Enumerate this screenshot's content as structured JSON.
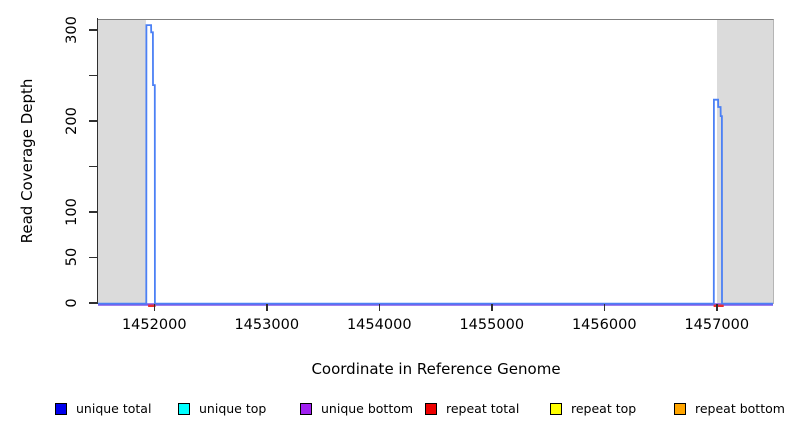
{
  "chart_data": {
    "type": "line",
    "title": "",
    "xlabel": "Coordinate in Reference Genome",
    "ylabel": "Read Coverage Depth",
    "xlim": [
      1451500,
      1457500
    ],
    "ylim": [
      0,
      312
    ],
    "grid": "off",
    "x_ticks": [
      {
        "value": 1452000,
        "label": "1452000"
      },
      {
        "value": 1453000,
        "label": "1453000"
      },
      {
        "value": 1454000,
        "label": "1454000"
      },
      {
        "value": 1455000,
        "label": "1455000"
      },
      {
        "value": 1456000,
        "label": "1456000"
      },
      {
        "value": 1457000,
        "label": "1457000"
      }
    ],
    "y_ticks": [
      {
        "value": 0,
        "label": "0"
      },
      {
        "value": 50,
        "label": "50"
      },
      {
        "value": 100,
        "label": "100"
      },
      {
        "value": 150,
        "label": ""
      },
      {
        "value": 200,
        "label": "200"
      },
      {
        "value": 250,
        "label": ""
      },
      {
        "value": 300,
        "label": "300"
      }
    ],
    "shaded_regions": [
      {
        "x0": 1451500,
        "x1": 1451930,
        "color": "#dbdbdb"
      },
      {
        "x0": 1457000,
        "x1": 1457500,
        "color": "#dbdbdb"
      }
    ],
    "series": [
      {
        "name": "unique bottom",
        "color": "#8055e8",
        "width": 2.4,
        "dy": 0.5,
        "points": [
          [
            1451500,
            0
          ],
          [
            1457500,
            0
          ]
        ]
      },
      {
        "name": "repeat total",
        "color": "#ee2e2e",
        "width": 2.4,
        "dy": 1.8,
        "segments": [
          [
            [
              1451945,
              0
            ],
            [
              1452012,
              0
            ]
          ],
          [
            [
              1456972,
              0
            ],
            [
              1457062,
              0
            ]
          ]
        ]
      },
      {
        "name": "unique total",
        "color": "#4b80f5",
        "width": 1.8,
        "dy": -0.4,
        "points": [
          [
            1451500,
            0
          ],
          [
            1451929,
            0
          ],
          [
            1451930,
            306
          ],
          [
            1451972,
            306
          ],
          [
            1451973,
            298
          ],
          [
            1451988,
            298
          ],
          [
            1451989,
            240
          ],
          [
            1452005,
            240
          ],
          [
            1452006,
            0
          ],
          [
            1456974,
            0
          ],
          [
            1456975,
            224
          ],
          [
            1457012,
            224
          ],
          [
            1457013,
            216
          ],
          [
            1457034,
            216
          ],
          [
            1457035,
            206
          ],
          [
            1457046,
            206
          ],
          [
            1457047,
            0
          ],
          [
            1457500,
            0
          ]
        ]
      }
    ]
  },
  "legend": {
    "items": [
      {
        "label": "unique total",
        "color": "#0000ee"
      },
      {
        "label": "unique top",
        "color": "#00ffff"
      },
      {
        "label": "unique bottom",
        "color": "#a020f0"
      },
      {
        "label": "repeat total",
        "color": "#ee0000"
      },
      {
        "label": "repeat top",
        "color": "#ffff00"
      },
      {
        "label": "repeat bottom",
        "color": "#ffa500"
      }
    ]
  }
}
